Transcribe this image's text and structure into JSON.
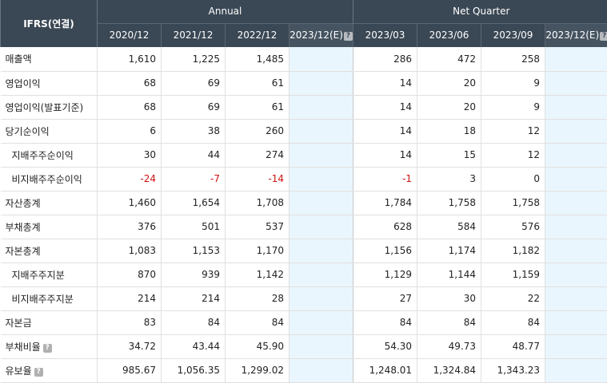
{
  "header": {
    "corner": "IFRS(연결)",
    "annual_label": "Annual",
    "quarter_label": "Net Quarter",
    "help_glyph": "?",
    "annual_periods": [
      "2020/12",
      "2021/12",
      "2022/12",
      "2023/12(E)"
    ],
    "quarter_periods": [
      "2023/03",
      "2023/06",
      "2023/09",
      "2023/12(E)"
    ]
  },
  "rows": [
    {
      "label": "매출액",
      "annual": [
        "1,610",
        "1,225",
        "1,485",
        ""
      ],
      "quarter": [
        "286",
        "472",
        "258",
        ""
      ]
    },
    {
      "label": "영업이익",
      "annual": [
        "68",
        "69",
        "61",
        ""
      ],
      "quarter": [
        "14",
        "20",
        "9",
        ""
      ]
    },
    {
      "label": "영업이익(발표기준)",
      "annual": [
        "68",
        "69",
        "61",
        ""
      ],
      "quarter": [
        "14",
        "20",
        "9",
        ""
      ]
    },
    {
      "label": "당기순이익",
      "annual": [
        "6",
        "38",
        "260",
        ""
      ],
      "quarter": [
        "14",
        "18",
        "12",
        ""
      ]
    },
    {
      "label": "지배주주순이익",
      "annual": [
        "30",
        "44",
        "274",
        ""
      ],
      "quarter": [
        "14",
        "15",
        "12",
        ""
      ]
    },
    {
      "label": "비지배주주순이익",
      "annual": [
        "-24",
        "-7",
        "-14",
        ""
      ],
      "quarter": [
        "-1",
        "3",
        "0",
        ""
      ]
    },
    {
      "label": "자산총계",
      "annual": [
        "1,460",
        "1,654",
        "1,708",
        ""
      ],
      "quarter": [
        "1,784",
        "1,758",
        "1,758",
        ""
      ]
    },
    {
      "label": "부채총계",
      "annual": [
        "376",
        "501",
        "537",
        ""
      ],
      "quarter": [
        "628",
        "584",
        "576",
        ""
      ]
    },
    {
      "label": "자본총계",
      "annual": [
        "1,083",
        "1,153",
        "1,170",
        ""
      ],
      "quarter": [
        "1,156",
        "1,174",
        "1,182",
        ""
      ]
    },
    {
      "label": "지배주주지분",
      "annual": [
        "870",
        "939",
        "1,142",
        ""
      ],
      "quarter": [
        "1,129",
        "1,144",
        "1,159",
        ""
      ]
    },
    {
      "label": "비지배주주지분",
      "annual": [
        "214",
        "214",
        "28",
        ""
      ],
      "quarter": [
        "27",
        "30",
        "22",
        ""
      ]
    },
    {
      "label": "자본금",
      "annual": [
        "83",
        "84",
        "84",
        ""
      ],
      "quarter": [
        "84",
        "84",
        "84",
        ""
      ]
    },
    {
      "label": "부채비율",
      "annual": [
        "34.72",
        "43.44",
        "45.90",
        ""
      ],
      "quarter": [
        "54.30",
        "49.73",
        "48.77",
        ""
      ]
    },
    {
      "label": "유보율",
      "annual": [
        "985.67",
        "1,056.35",
        "1,299.02",
        ""
      ],
      "quarter": [
        "1,248.01",
        "1,324.84",
        "1,343.23",
        ""
      ]
    }
  ]
}
